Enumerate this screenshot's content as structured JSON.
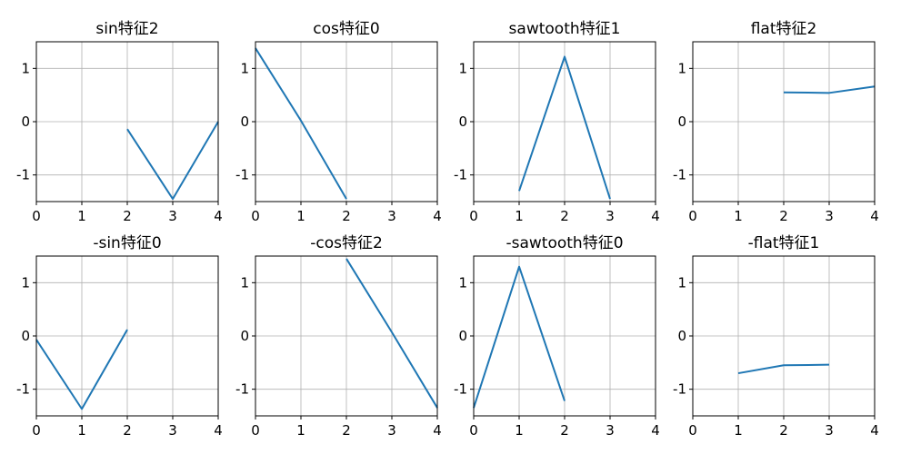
{
  "colors": {
    "line": "#1f77b4",
    "grid": "#b0b0b0"
  },
  "chart_data": [
    {
      "type": "line",
      "title": "sin特征2",
      "x": [
        2,
        3,
        4
      ],
      "y": [
        -0.14,
        -1.45,
        0.0
      ],
      "xlim": [
        0,
        4
      ],
      "ylim": [
        -1.5,
        1.5
      ],
      "xticks": [
        0,
        1,
        2,
        3,
        4
      ],
      "yticks": [
        -1,
        0,
        1
      ],
      "xtick_labels": [
        "0",
        "1",
        "2",
        "3",
        "4"
      ],
      "ytick_labels": [
        "-1",
        "0",
        "1"
      ],
      "grid": true
    },
    {
      "type": "line",
      "title": "cos特征0",
      "x": [
        0,
        1,
        2
      ],
      "y": [
        1.38,
        0.02,
        -1.45
      ],
      "xlim": [
        0,
        4
      ],
      "ylim": [
        -1.5,
        1.5
      ],
      "xticks": [
        0,
        1,
        2,
        3,
        4
      ],
      "yticks": [
        -1,
        0,
        1
      ],
      "xtick_labels": [
        "0",
        "1",
        "2",
        "3",
        "4"
      ],
      "ytick_labels": [
        "-1",
        "0",
        "1"
      ],
      "grid": true
    },
    {
      "type": "line",
      "title": "sawtooth特征1",
      "x": [
        1,
        2,
        3
      ],
      "y": [
        -1.3,
        1.22,
        -1.45
      ],
      "xlim": [
        0,
        4
      ],
      "ylim": [
        -1.5,
        1.5
      ],
      "xticks": [
        0,
        1,
        2,
        3,
        4
      ],
      "yticks": [
        -1,
        0,
        1
      ],
      "xtick_labels": [
        "0",
        "1",
        "2",
        "3",
        "4"
      ],
      "ytick_labels": [
        "-1",
        "0",
        "1"
      ],
      "grid": true
    },
    {
      "type": "line",
      "title": "flat特征2",
      "x": [
        2,
        3,
        4
      ],
      "y": [
        0.55,
        0.54,
        0.66
      ],
      "xlim": [
        0,
        4
      ],
      "ylim": [
        -1.5,
        1.5
      ],
      "xticks": [
        0,
        1,
        2,
        3,
        4
      ],
      "yticks": [
        -1,
        0,
        1
      ],
      "xtick_labels": [
        "0",
        "1",
        "2",
        "3",
        "4"
      ],
      "ytick_labels": [
        "-1",
        "0",
        "1"
      ],
      "grid": true
    },
    {
      "type": "line",
      "title": "-sin特征0",
      "x": [
        0,
        1,
        2
      ],
      "y": [
        -0.07,
        -1.37,
        0.12
      ],
      "xlim": [
        0,
        4
      ],
      "ylim": [
        -1.5,
        1.5
      ],
      "xticks": [
        0,
        1,
        2,
        3,
        4
      ],
      "yticks": [
        -1,
        0,
        1
      ],
      "xtick_labels": [
        "0",
        "1",
        "2",
        "3",
        "4"
      ],
      "ytick_labels": [
        "-1",
        "0",
        "1"
      ],
      "grid": true
    },
    {
      "type": "line",
      "title": "-cos特征2",
      "x": [
        2,
        3,
        4
      ],
      "y": [
        1.45,
        0.07,
        -1.35
      ],
      "xlim": [
        0,
        4
      ],
      "ylim": [
        -1.5,
        1.5
      ],
      "xticks": [
        0,
        1,
        2,
        3,
        4
      ],
      "yticks": [
        -1,
        0,
        1
      ],
      "xtick_labels": [
        "0",
        "1",
        "2",
        "3",
        "4"
      ],
      "ytick_labels": [
        "-1",
        "0",
        "1"
      ],
      "grid": true
    },
    {
      "type": "line",
      "title": "-sawtooth特征0",
      "x": [
        0,
        1,
        2
      ],
      "y": [
        -1.35,
        1.3,
        -1.22
      ],
      "xlim": [
        0,
        4
      ],
      "ylim": [
        -1.5,
        1.5
      ],
      "xticks": [
        0,
        1,
        2,
        3,
        4
      ],
      "yticks": [
        -1,
        0,
        1
      ],
      "xtick_labels": [
        "0",
        "1",
        "2",
        "3",
        "4"
      ],
      "ytick_labels": [
        "-1",
        "0",
        "1"
      ],
      "grid": true
    },
    {
      "type": "line",
      "title": "-flat特征1",
      "x": [
        1,
        2,
        3
      ],
      "y": [
        -0.7,
        -0.55,
        -0.54
      ],
      "xlim": [
        0,
        4
      ],
      "ylim": [
        -1.5,
        1.5
      ],
      "xticks": [
        0,
        1,
        2,
        3,
        4
      ],
      "yticks": [
        -1,
        0,
        1
      ],
      "xtick_labels": [
        "0",
        "1",
        "2",
        "3",
        "4"
      ],
      "ytick_labels": [
        "-1",
        "0",
        "1"
      ],
      "grid": true
    }
  ]
}
